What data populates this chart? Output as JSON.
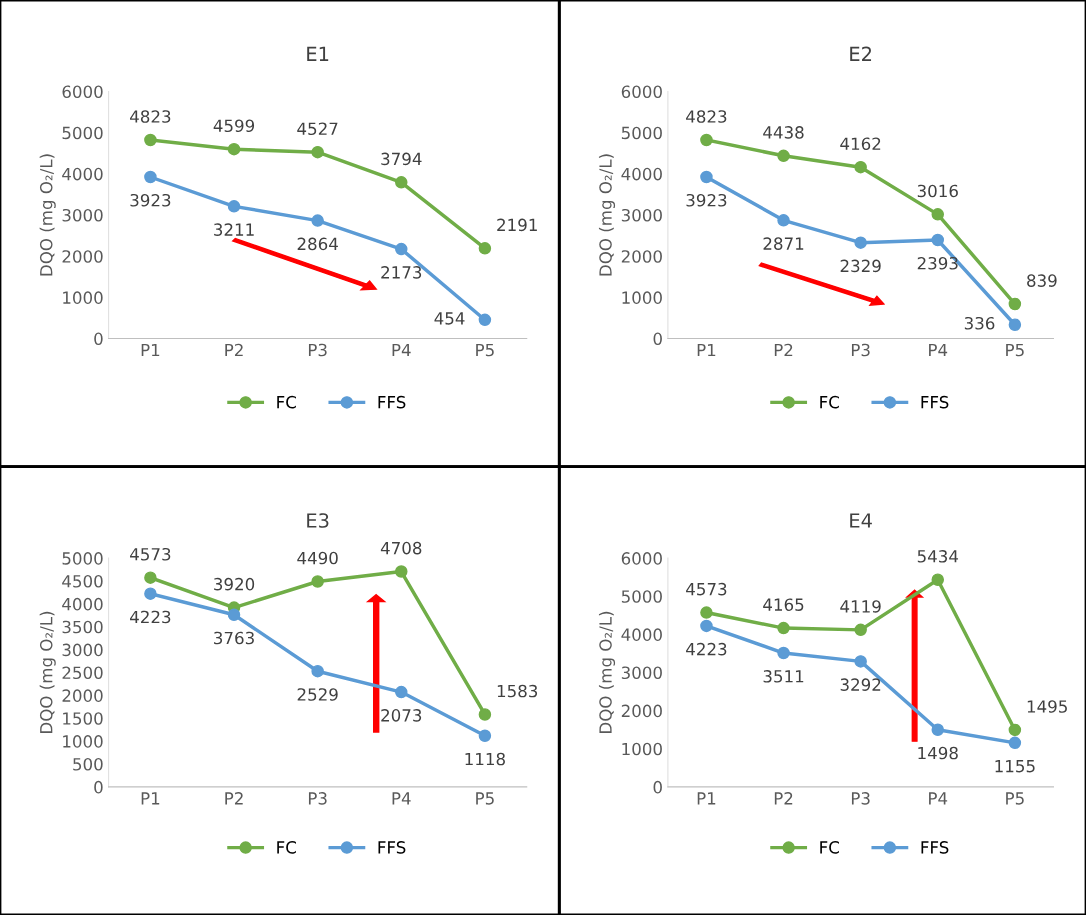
{
  "chart_data": [
    {
      "type": "line",
      "title": "E1",
      "ylabel": "DQO (mg O₂/L)",
      "categories": [
        "P1",
        "P2",
        "P3",
        "P4",
        "P5"
      ],
      "ylim": [
        0,
        6000
      ],
      "yticks": [
        0,
        1000,
        2000,
        3000,
        4000,
        5000,
        6000
      ],
      "grid": false,
      "legend": "bottom",
      "marker": "circle",
      "data_labels": true,
      "series": [
        {
          "name": "FC",
          "color": "#70ad47",
          "values": [
            4823,
            4599,
            4527,
            3794,
            2191
          ]
        },
        {
          "name": "FFS",
          "color": "#5b9bd5",
          "values": [
            3923,
            3211,
            2864,
            2173,
            454
          ]
        }
      ]
    },
    {
      "type": "line",
      "title": "E2",
      "ylabel": "DQO (mg O₂/L)",
      "categories": [
        "P1",
        "P2",
        "P3",
        "P4",
        "P5"
      ],
      "ylim": [
        0,
        6000
      ],
      "yticks": [
        0,
        1000,
        2000,
        3000,
        4000,
        5000,
        6000
      ],
      "grid": false,
      "legend": "bottom",
      "marker": "circle",
      "data_labels": true,
      "series": [
        {
          "name": "FC",
          "color": "#70ad47",
          "values": [
            4823,
            4438,
            4162,
            3016,
            839
          ]
        },
        {
          "name": "FFS",
          "color": "#5b9bd5",
          "values": [
            3923,
            2871,
            2329,
            2393,
            336
          ]
        }
      ]
    },
    {
      "type": "line",
      "title": "E3",
      "ylabel": "DQO (mg O₂/L)",
      "categories": [
        "P1",
        "P2",
        "P3",
        "P4",
        "P5"
      ],
      "ylim": [
        0,
        5000
      ],
      "yticks": [
        0,
        500,
        1000,
        1500,
        2000,
        2500,
        3000,
        3500,
        4000,
        4500,
        5000
      ],
      "grid": false,
      "legend": "bottom",
      "marker": "circle",
      "data_labels": true,
      "series": [
        {
          "name": "FC",
          "color": "#70ad47",
          "values": [
            4573,
            3920,
            4490,
            4708,
            1583
          ]
        },
        {
          "name": "FFS",
          "color": "#5b9bd5",
          "values": [
            4223,
            3763,
            2529,
            2073,
            1118
          ]
        }
      ]
    },
    {
      "type": "line",
      "title": "E4",
      "ylabel": "DQO (mg O₂/L)",
      "categories": [
        "P1",
        "P2",
        "P3",
        "P4",
        "P5"
      ],
      "ylim": [
        0,
        6000
      ],
      "yticks": [
        0,
        1000,
        2000,
        3000,
        4000,
        5000,
        6000
      ],
      "grid": false,
      "legend": "bottom",
      "marker": "circle",
      "data_labels": true,
      "series": [
        {
          "name": "FC",
          "color": "#70ad47",
          "values": [
            4573,
            4165,
            4119,
            5434,
            1495
          ]
        },
        {
          "name": "FFS",
          "color": "#5b9bd5",
          "values": [
            4223,
            3511,
            3292,
            1498,
            1155
          ]
        }
      ]
    }
  ]
}
